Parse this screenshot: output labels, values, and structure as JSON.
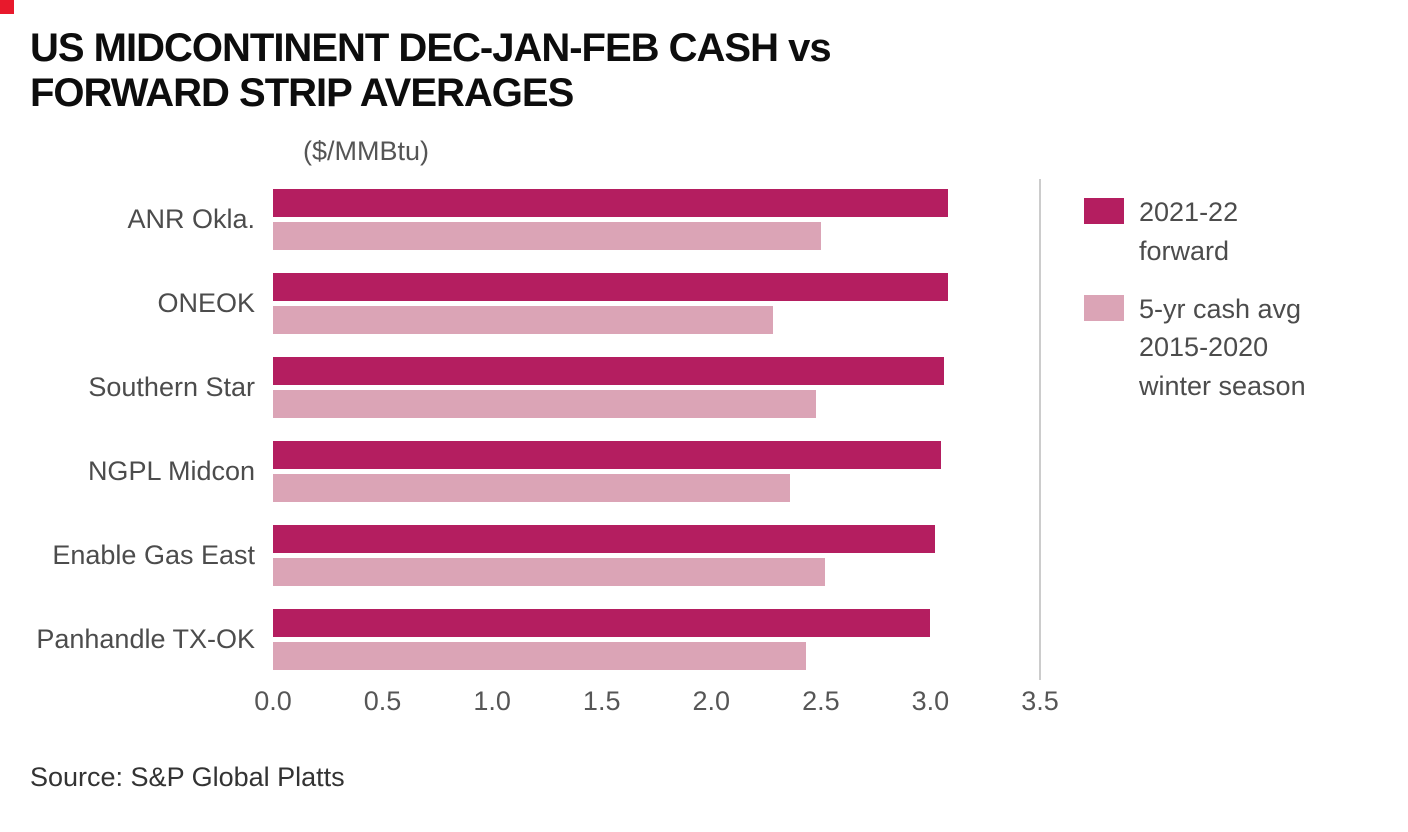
{
  "branding": {
    "corner_color": "#e8192c"
  },
  "title": "US MIDCONTINENT DEC-JAN-FEB CASH vs\nFORWARD STRIP AVERAGES",
  "units_label": "($/MMBtu)",
  "source": "Source: S&P Global Platts",
  "chart_data": {
    "type": "bar",
    "orientation": "horizontal",
    "title": "US MIDCONTINENT DEC-JAN-FEB CASH vs FORWARD STRIP AVERAGES",
    "xlabel": "($/MMBtu)",
    "xlim": [
      0,
      3.5
    ],
    "x_ticks": [
      "0.0",
      "0.5",
      "1.0",
      "1.5",
      "2.0",
      "2.5",
      "3.0",
      "3.5"
    ],
    "grid": "single vertical line at x=3.5, no other gridlines",
    "legend_position": "right-top",
    "categories": [
      "ANR Okla.",
      "ONEOK",
      "Southern Star",
      "NGPL Midcon",
      "Enable Gas East",
      "Panhandle TX-OK"
    ],
    "series": [
      {
        "name": "2021-22 forward",
        "color": "#b41e60",
        "values": [
          3.08,
          3.08,
          3.06,
          3.05,
          3.02,
          3.0
        ]
      },
      {
        "name": "5-yr cash avg 2015-2020 winter season",
        "color": "#dba4b6",
        "values": [
          2.5,
          2.28,
          2.48,
          2.36,
          2.52,
          2.43
        ]
      }
    ],
    "legend": [
      {
        "label": "2021-22\nforward",
        "color": "#b41e60"
      },
      {
        "label": "5-yr cash avg\n2015-2020\nwinter season",
        "color": "#dba4b6"
      }
    ]
  }
}
